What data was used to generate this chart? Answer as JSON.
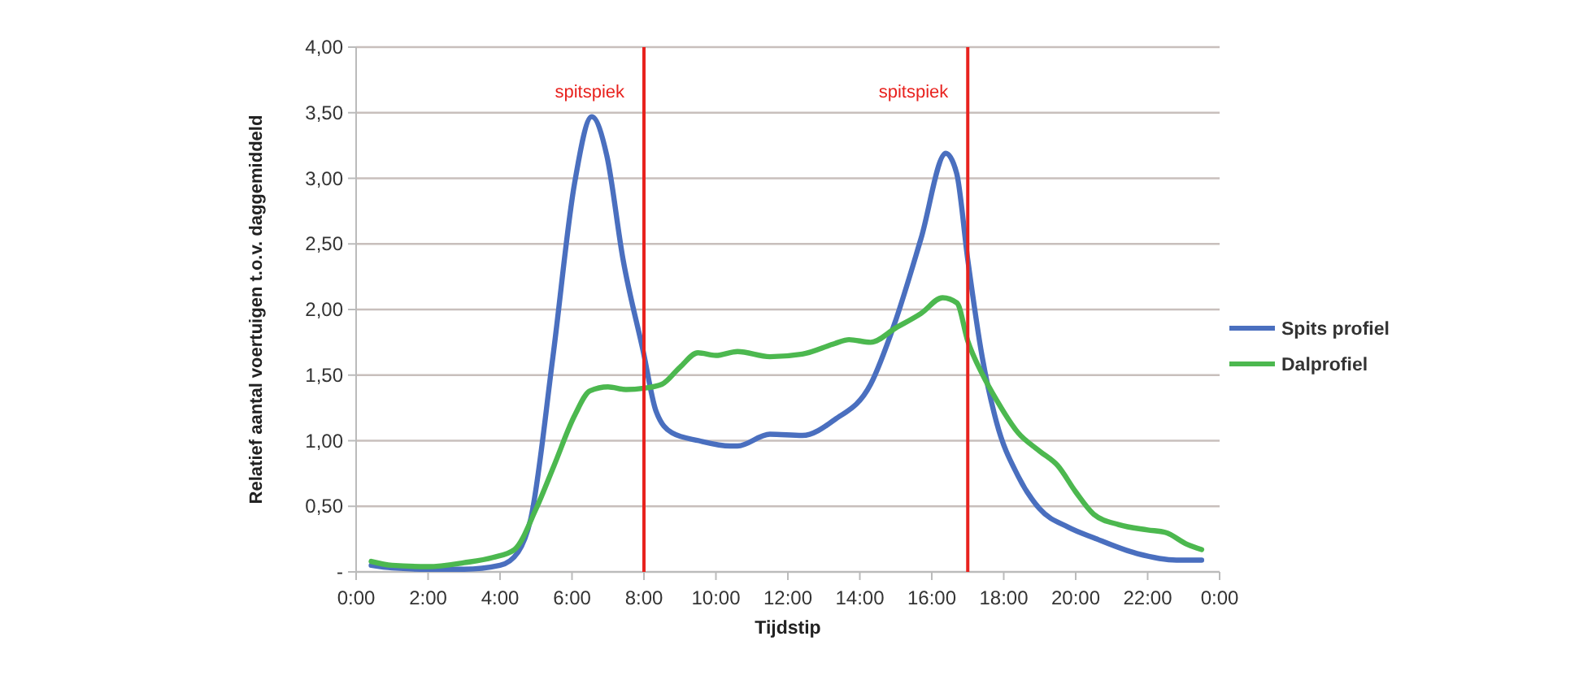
{
  "chart_data": {
    "type": "line",
    "xlabel": "Tijdstip",
    "ylabel": "Relatief aantal voertuigen t.o.v. daggemiddeld",
    "xlim": [
      0,
      24
    ],
    "xticks": [
      {
        "value": 0,
        "label": "0:00"
      },
      {
        "value": 2,
        "label": "2:00"
      },
      {
        "value": 4,
        "label": "4:00"
      },
      {
        "value": 6,
        "label": "6:00"
      },
      {
        "value": 8,
        "label": "8:00"
      },
      {
        "value": 10,
        "label": "10:00"
      },
      {
        "value": 12,
        "label": "12:00"
      },
      {
        "value": 14,
        "label": "14:00"
      },
      {
        "value": 16,
        "label": "16:00"
      },
      {
        "value": 18,
        "label": "18:00"
      },
      {
        "value": 20,
        "label": "20:00"
      },
      {
        "value": 22,
        "label": "22:00"
      },
      {
        "value": 24,
        "label": "0:00"
      }
    ],
    "ylim": [
      0,
      4
    ],
    "yticks": [
      {
        "value": 0,
        "label": "-"
      },
      {
        "value": 0.5,
        "label": "0,50"
      },
      {
        "value": 1,
        "label": "1,00"
      },
      {
        "value": 1.5,
        "label": "1,50"
      },
      {
        "value": 2,
        "label": "2,00"
      },
      {
        "value": 2.5,
        "label": "2,50"
      },
      {
        "value": 3,
        "label": "3,00"
      },
      {
        "value": 3.5,
        "label": "3,50"
      },
      {
        "value": 4,
        "label": "4,00"
      }
    ],
    "grid": "y",
    "legend": "right",
    "marker": "none",
    "line_style": "solid",
    "ref_lines": [
      {
        "axis": "x",
        "value": 8,
        "label": "spitspiek",
        "color": "#e8221e"
      },
      {
        "axis": "x",
        "value": 17,
        "label": "spitspiek",
        "color": "#e8221e"
      }
    ],
    "series": [
      {
        "name": "Spits profiel",
        "color": "#4a6fbf",
        "x": [
          0.42,
          1,
          2,
          3,
          4,
          4.5,
          4.85,
          5.47,
          6.07,
          6.55,
          6.97,
          7.42,
          7.98,
          8.33,
          8.78,
          9.53,
          10.4,
          10.6,
          11.5,
          12.4,
          13.3,
          14.3,
          14.95,
          15.7,
          16.39,
          16.69,
          17,
          17.4,
          17.8,
          18.4,
          19,
          19.8,
          20.5,
          21.7,
          22.8,
          23.5
        ],
        "values": [
          0.05,
          0.03,
          0.02,
          0.02,
          0.05,
          0.15,
          0.4,
          1.64,
          2.96,
          3.47,
          3.17,
          2.38,
          1.68,
          1.23,
          1.06,
          1,
          0.96,
          0.96,
          1.05,
          1.04,
          1.16,
          1.43,
          1.88,
          2.54,
          3.19,
          3.04,
          2.38,
          1.64,
          1.14,
          0.73,
          0.48,
          0.34,
          0.26,
          0.14,
          0.09,
          0.09
        ]
      },
      {
        "name": "Dalprofiel",
        "color": "#4cb84f",
        "x": [
          0.42,
          1,
          2,
          3,
          3.8,
          4.4,
          5,
          5.5,
          6.07,
          6.5,
          7,
          7.5,
          8,
          8.5,
          9,
          9.5,
          10,
          10.6,
          11.5,
          12.4,
          13.3,
          13.7,
          14.3,
          15,
          15.7,
          16.3,
          16.7,
          17,
          17.4,
          17.8,
          18.4,
          19,
          19.5,
          20,
          20.5,
          21.2,
          22,
          22.5,
          23.1,
          23.5
        ],
        "values": [
          0.08,
          0.05,
          0.04,
          0.07,
          0.11,
          0.17,
          0.48,
          0.81,
          1.19,
          1.38,
          1.41,
          1.39,
          1.4,
          1.43,
          1.56,
          1.67,
          1.65,
          1.68,
          1.64,
          1.66,
          1.74,
          1.77,
          1.75,
          1.86,
          1.97,
          2.09,
          2.05,
          1.76,
          1.51,
          1.31,
          1.06,
          0.92,
          0.81,
          0.61,
          0.44,
          0.36,
          0.32,
          0.3,
          0.21,
          0.17
        ]
      }
    ]
  }
}
